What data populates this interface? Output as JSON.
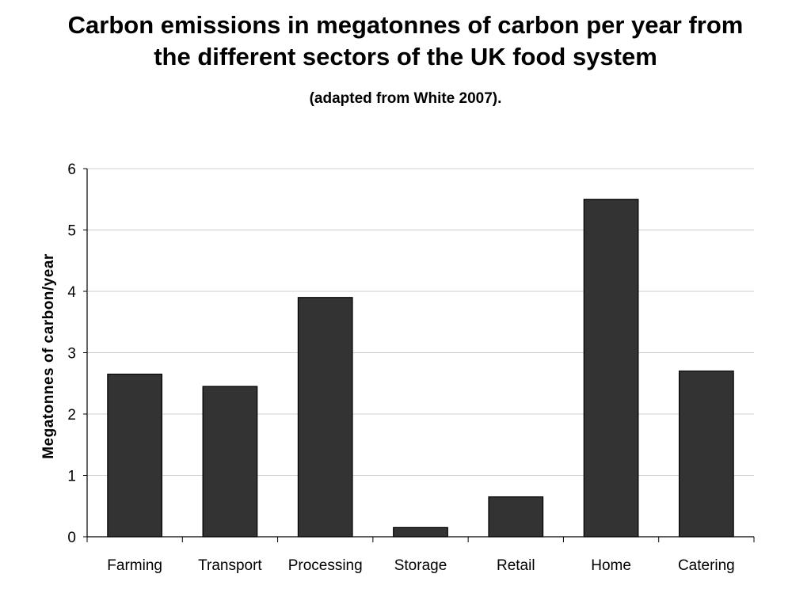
{
  "title_lines": [
    "Carbon emissions in megatonnes of carbon per year from",
    "the different sectors of the UK food system"
  ],
  "subtitle": "(adapted from White 2007).",
  "chart_data": {
    "type": "bar",
    "title": "Carbon emissions in megatonnes of carbon per year from the different sectors of the UK food system",
    "subtitle": "(adapted from White 2007).",
    "xlabel": "",
    "ylabel": "Megatonnes of carbon/year",
    "categories": [
      "Farming",
      "Transport",
      "Processing",
      "Storage",
      "Retail",
      "Home",
      "Catering"
    ],
    "values": [
      2.65,
      2.45,
      3.9,
      0.15,
      0.65,
      5.5,
      2.7
    ],
    "ylim": [
      0,
      6
    ],
    "yticks": [
      "0",
      "1",
      "2",
      "3",
      "4",
      "5",
      "6"
    ],
    "grid": true,
    "legend": "none",
    "colors": {
      "bar_fill": "#333333",
      "bar_stroke": "#000000",
      "grid": "#cfcfcf",
      "axis": "#000000"
    }
  }
}
